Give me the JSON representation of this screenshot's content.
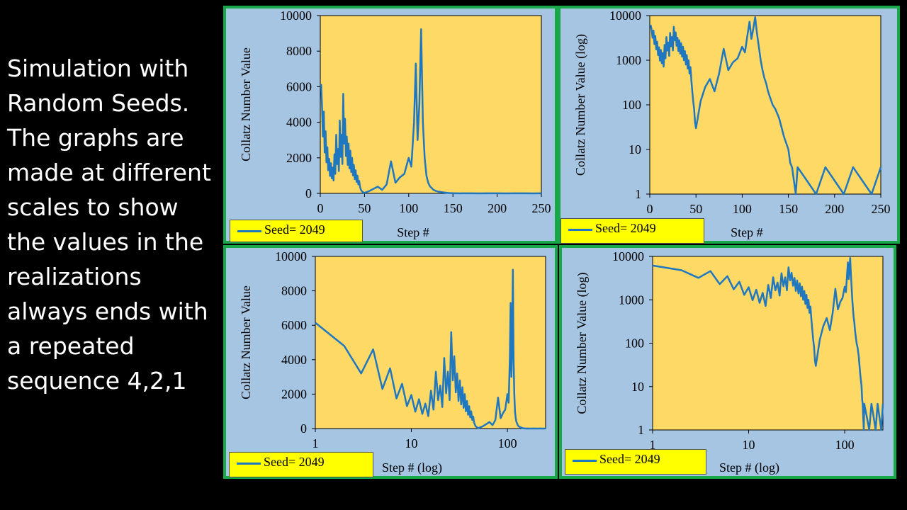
{
  "caption": "Simulation with Random Seeds. The graphs are made at different scales to show the values in the realizations always ends with a repeated sequence 4,2,1",
  "colors": {
    "plot_bg": "#ffd966",
    "panel_bg": "#a6c5e3",
    "border": "#18a84a",
    "line": "#1f77c0",
    "legend_bg": "#ffff00"
  },
  "chart_data": [
    {
      "type": "line",
      "x_scale": "linear",
      "y_scale": "linear",
      "xlabel": "Step #",
      "ylabel": "Collatz Number Value",
      "xlim": [
        0,
        250
      ],
      "ylim": [
        0,
        10000
      ],
      "x_ticks": [
        0,
        50,
        100,
        150,
        200,
        250
      ],
      "x_tick_labels": [
        "0",
        "50",
        "100",
        "150",
        "200",
        "250"
      ],
      "y_ticks": [
        0,
        2000,
        4000,
        6000,
        8000,
        10000
      ],
      "y_tick_labels": [
        "0",
        "2000",
        "4000",
        "6000",
        "8000",
        "10000"
      ],
      "legend": "Seed= 2049",
      "series_ref": "seed_2049"
    },
    {
      "type": "line",
      "x_scale": "linear",
      "y_scale": "log",
      "xlabel": "Step #",
      "ylabel": "Collatz Number Value (log)",
      "xlim": [
        0,
        250
      ],
      "ylim": [
        1,
        10000
      ],
      "x_ticks": [
        0,
        50,
        100,
        150,
        200,
        250
      ],
      "x_tick_labels": [
        "0",
        "50",
        "100",
        "150",
        "200",
        "250"
      ],
      "y_ticks": [
        1,
        10,
        100,
        1000,
        10000
      ],
      "y_tick_labels": [
        "1",
        "10",
        "100",
        "1000",
        "10000"
      ],
      "legend": "Seed= 2049",
      "series_ref": "seed_2049"
    },
    {
      "type": "line",
      "x_scale": "log",
      "y_scale": "linear",
      "xlabel": "Step # (log)",
      "ylabel": "Collatz Number Value",
      "xlim": [
        1,
        250
      ],
      "ylim": [
        0,
        10000
      ],
      "x_ticks": [
        1,
        10,
        100
      ],
      "x_tick_labels": [
        "1",
        "10",
        "100"
      ],
      "y_ticks": [
        0,
        2000,
        4000,
        6000,
        8000,
        10000
      ],
      "y_tick_labels": [
        "0",
        "2000",
        "4000",
        "6000",
        "8000",
        "10000"
      ],
      "legend": "Seed= 2049",
      "series_ref": "seed_2049"
    },
    {
      "type": "line",
      "x_scale": "log",
      "y_scale": "log",
      "xlabel": "Step # (log)",
      "ylabel": "Collatz Number Value (log)",
      "xlim": [
        1,
        250
      ],
      "ylim": [
        1,
        10000
      ],
      "x_ticks": [
        1,
        10,
        100
      ],
      "x_tick_labels": [
        "1",
        "10",
        "100"
      ],
      "y_ticks": [
        1,
        10,
        100,
        1000,
        10000
      ],
      "y_tick_labels": [
        "1",
        "10",
        "100",
        "1000",
        "10000"
      ],
      "legend": "Seed= 2049",
      "series_ref": "seed_2049"
    }
  ],
  "series": {
    "seed_2049": {
      "name": "Seed= 2049",
      "steps": [
        1,
        2,
        3,
        4,
        5,
        6,
        7,
        8,
        9,
        10,
        11,
        12,
        13,
        14,
        15,
        16,
        17,
        18,
        19,
        20,
        21,
        22,
        23,
        24,
        25,
        26,
        27,
        28,
        29,
        30,
        31,
        32,
        33,
        34,
        35,
        36,
        37,
        38,
        39,
        40,
        41,
        42,
        43,
        44,
        45,
        46,
        47,
        48,
        49,
        50,
        55,
        60,
        65,
        70,
        75,
        80,
        85,
        90,
        95,
        100,
        103,
        106,
        108,
        110,
        112,
        114,
        116,
        118,
        120,
        122,
        124,
        126,
        128,
        130,
        133,
        136,
        140,
        145,
        150,
        152,
        154,
        156,
        158,
        160,
        170,
        180,
        190,
        200,
        210,
        220,
        230,
        240,
        250
      ],
      "values": [
        6148,
        4800,
        3200,
        4600,
        2300,
        3500,
        1750,
        2600,
        1300,
        1950,
        980,
        1700,
        850,
        1450,
        720,
        2200,
        1100,
        3300,
        1650,
        2500,
        1250,
        4100,
        2050,
        3300,
        1650,
        5600,
        2800,
        4200,
        2100,
        3200,
        1600,
        2800,
        1400,
        2400,
        1200,
        2000,
        1000,
        1600,
        800,
        1300,
        650,
        1000,
        500,
        700,
        350,
        200,
        120,
        80,
        40,
        30,
        120,
        250,
        380,
        200,
        500,
        1800,
        600,
        900,
        1100,
        2000,
        1500,
        4000,
        7300,
        3000,
        5000,
        9232,
        4000,
        2000,
        1000,
        600,
        400,
        300,
        200,
        150,
        100,
        80,
        50,
        20,
        10,
        5,
        4,
        2,
        1,
        4,
        2,
        1,
        4,
        2,
        1,
        4,
        2,
        1,
        4
      ]
    }
  }
}
